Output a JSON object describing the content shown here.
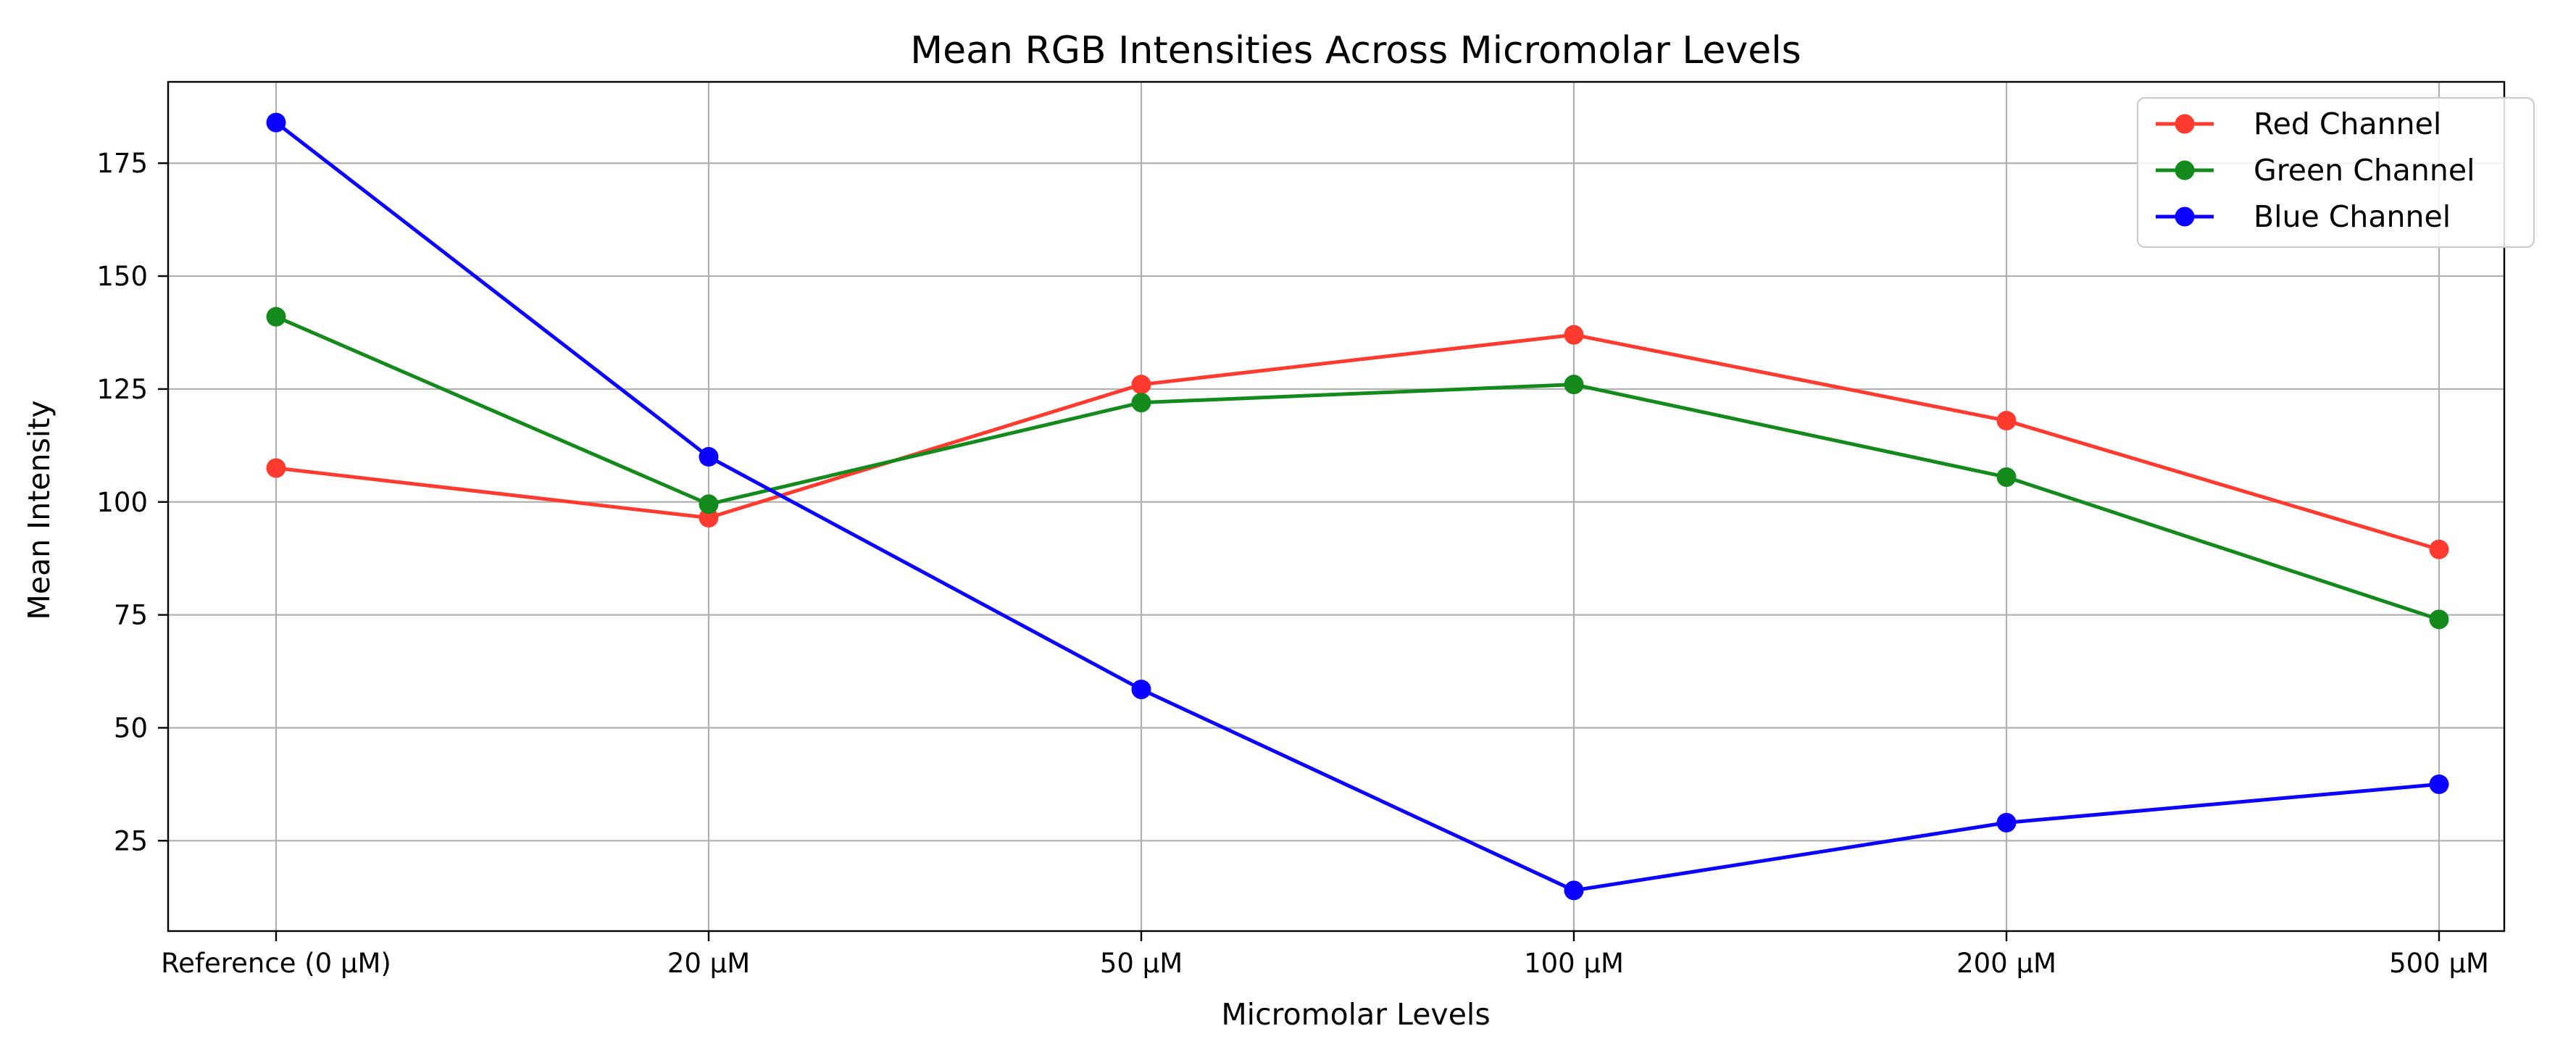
{
  "chart_data": {
    "type": "line",
    "title": "Mean RGB Intensities Across Micromolar Levels",
    "xlabel": "Micromolar Levels",
    "ylabel": "Mean Intensity",
    "categories": [
      "Reference (0 μM)",
      "20 μM",
      "50 μM",
      "100 μM",
      "200 μM",
      "500 μM"
    ],
    "ylim": [
      5,
      193
    ],
    "yticks": [
      25,
      50,
      75,
      100,
      125,
      150,
      175
    ],
    "grid": true,
    "legend_position": "top-right",
    "series": [
      {
        "name": "Red Channel",
        "color": "#ff3b30",
        "marker": "circle",
        "values": [
          107.5,
          96.5,
          126,
          137,
          118,
          89.5
        ]
      },
      {
        "name": "Green Channel",
        "color": "#138a1b",
        "marker": "circle",
        "values": [
          141,
          99.5,
          122,
          126,
          105.5,
          74
        ]
      },
      {
        "name": "Blue Channel",
        "color": "#0b00ff",
        "marker": "circle",
        "values": [
          184,
          110,
          58.5,
          14,
          29,
          37.5
        ]
      }
    ]
  }
}
